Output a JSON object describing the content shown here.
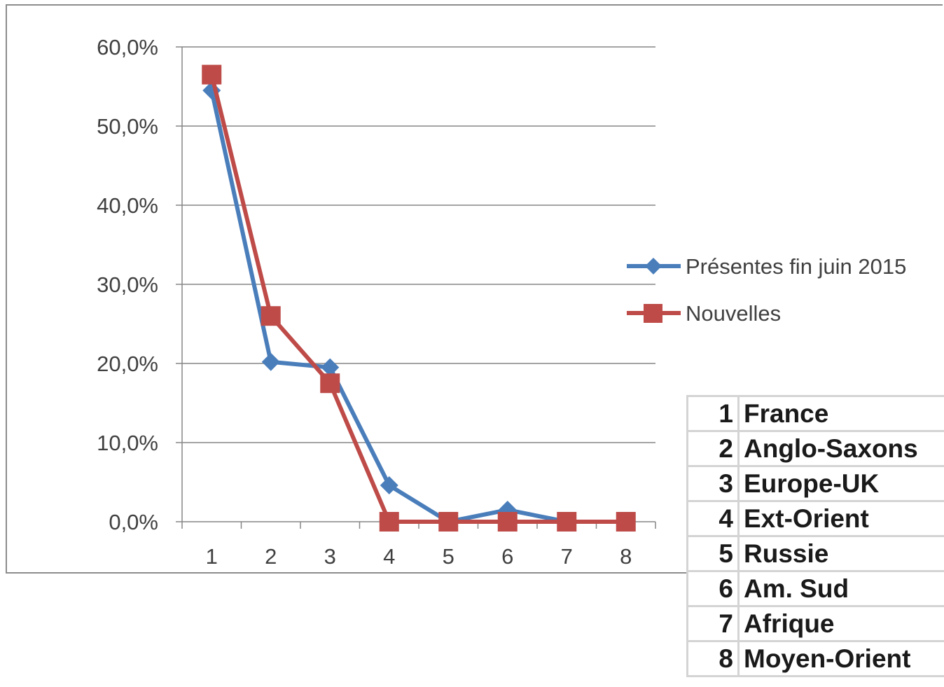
{
  "chart_data": {
    "type": "line",
    "title": "",
    "xlabel": "",
    "ylabel": "",
    "x": [
      "1",
      "2",
      "3",
      "4",
      "5",
      "6",
      "7",
      "8"
    ],
    "y_ticks": [
      "0,0%",
      "10,0%",
      "20,0%",
      "30,0%",
      "40,0%",
      "50,0%",
      "60,0%"
    ],
    "ylim": [
      0,
      60
    ],
    "grid": true,
    "legend_position": "right",
    "series": [
      {
        "name": "Présentes fin juin 2015",
        "color": "#4a7ebb",
        "marker": "diamond",
        "values": [
          54.5,
          20.2,
          19.5,
          4.6,
          0.0,
          1.5,
          0.0,
          0.0
        ]
      },
      {
        "name": "Nouvelles",
        "color": "#be4b48",
        "marker": "square",
        "values": [
          56.5,
          26.0,
          17.5,
          0.0,
          0.0,
          0.0,
          0.0,
          0.0
        ]
      }
    ]
  },
  "key_table": [
    {
      "num": "1",
      "name": "France"
    },
    {
      "num": "2",
      "name": "Anglo-Saxons"
    },
    {
      "num": "3",
      "name": "Europe-UK"
    },
    {
      "num": "4",
      "name": "Ext-Orient"
    },
    {
      "num": "5",
      "name": "Russie"
    },
    {
      "num": "6",
      "name": "Am. Sud"
    },
    {
      "num": "7",
      "name": "Afrique"
    },
    {
      "num": "8",
      "name": "Moyen-Orient"
    }
  ]
}
